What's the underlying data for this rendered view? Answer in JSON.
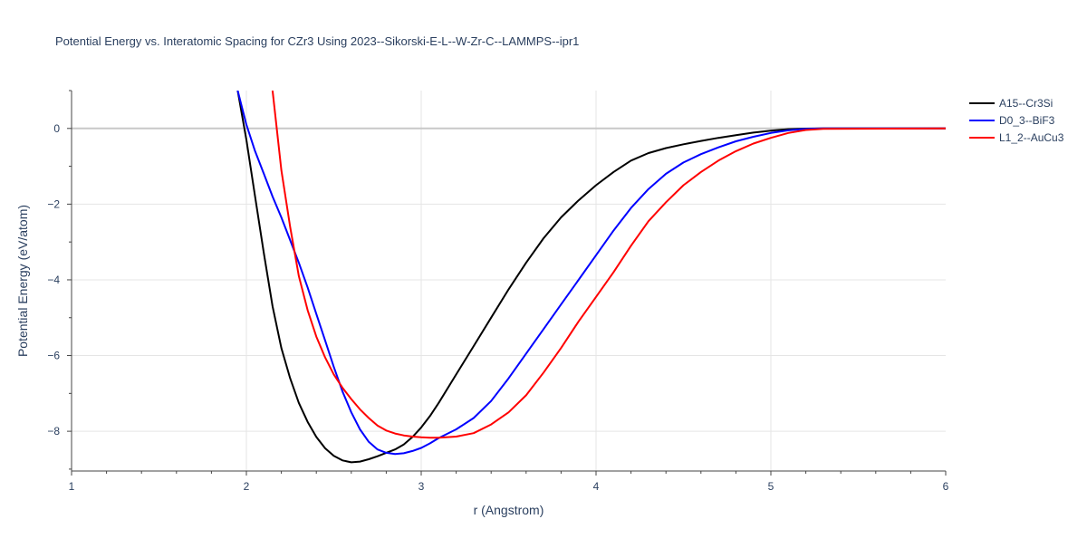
{
  "chart_data": {
    "type": "line",
    "title": "Potential Energy vs. Interatomic Spacing for CZr3 Using 2023--Sikorski-E-L--W-Zr-C--LAMMPS--ipr1",
    "xlabel": "r (Angstrom)",
    "ylabel": "Potential Energy (eV/atom)",
    "xlim": [
      1,
      6
    ],
    "ylim": [
      -9.05,
      1.0
    ],
    "x_ticks": [
      1,
      2,
      3,
      4,
      5,
      6
    ],
    "y_ticks": [
      0,
      -2,
      -4,
      -6,
      -8
    ],
    "x_tick_labels": [
      "1",
      "2",
      "3",
      "4",
      "5",
      "6"
    ],
    "y_tick_labels": [
      "0",
      "−2",
      "−4",
      "−6",
      "−8"
    ],
    "grid": true,
    "legend_position": "top-right",
    "series": [
      {
        "name": "A15--Cr3Si",
        "color": "#000000",
        "x": [
          1.95,
          2.0,
          2.05,
          2.1,
          2.15,
          2.2,
          2.25,
          2.3,
          2.35,
          2.4,
          2.45,
          2.5,
          2.55,
          2.6,
          2.65,
          2.7,
          2.75,
          2.8,
          2.85,
          2.9,
          2.95,
          3.0,
          3.05,
          3.1,
          3.2,
          3.3,
          3.4,
          3.5,
          3.6,
          3.7,
          3.8,
          3.9,
          4.0,
          4.1,
          4.2,
          4.3,
          4.4,
          4.5,
          4.6,
          4.7,
          4.8,
          4.9,
          5.0,
          5.1,
          5.2,
          5.3,
          6.0
        ],
        "y": [
          1.0,
          -0.3,
          -1.8,
          -3.3,
          -4.7,
          -5.8,
          -6.6,
          -7.25,
          -7.75,
          -8.15,
          -8.45,
          -8.65,
          -8.77,
          -8.82,
          -8.8,
          -8.74,
          -8.66,
          -8.57,
          -8.48,
          -8.35,
          -8.15,
          -7.9,
          -7.6,
          -7.25,
          -6.5,
          -5.75,
          -5.0,
          -4.25,
          -3.55,
          -2.9,
          -2.35,
          -1.9,
          -1.5,
          -1.15,
          -0.85,
          -0.65,
          -0.52,
          -0.42,
          -0.33,
          -0.25,
          -0.18,
          -0.11,
          -0.06,
          -0.02,
          -0.005,
          0.0,
          0.0
        ]
      },
      {
        "name": "D0_3--BiF3",
        "color": "#0000ff",
        "x": [
          1.95,
          2.0,
          2.05,
          2.1,
          2.15,
          2.2,
          2.25,
          2.3,
          2.35,
          2.4,
          2.45,
          2.5,
          2.55,
          2.6,
          2.65,
          2.7,
          2.75,
          2.8,
          2.85,
          2.9,
          2.95,
          3.0,
          3.05,
          3.1,
          3.2,
          3.3,
          3.4,
          3.5,
          3.6,
          3.7,
          3.8,
          3.9,
          4.0,
          4.1,
          4.2,
          4.3,
          4.4,
          4.5,
          4.6,
          4.7,
          4.8,
          4.9,
          5.0,
          5.1,
          5.2,
          5.3,
          6.0
        ],
        "y": [
          1.0,
          0.1,
          -0.6,
          -1.2,
          -1.8,
          -2.35,
          -2.95,
          -3.55,
          -4.2,
          -4.9,
          -5.6,
          -6.3,
          -6.95,
          -7.5,
          -7.95,
          -8.28,
          -8.48,
          -8.57,
          -8.6,
          -8.58,
          -8.52,
          -8.44,
          -8.32,
          -8.18,
          -7.95,
          -7.65,
          -7.2,
          -6.6,
          -5.95,
          -5.3,
          -4.65,
          -4.0,
          -3.35,
          -2.7,
          -2.1,
          -1.6,
          -1.2,
          -0.9,
          -0.68,
          -0.5,
          -0.34,
          -0.22,
          -0.12,
          -0.05,
          -0.01,
          0.0,
          0.0
        ]
      },
      {
        "name": "L1_2--AuCu3",
        "color": "#ff0000",
        "x": [
          2.15,
          2.2,
          2.25,
          2.3,
          2.35,
          2.4,
          2.45,
          2.5,
          2.55,
          2.6,
          2.65,
          2.7,
          2.75,
          2.8,
          2.85,
          2.9,
          2.95,
          3.0,
          3.05,
          3.1,
          3.2,
          3.3,
          3.4,
          3.5,
          3.6,
          3.7,
          3.8,
          3.9,
          4.0,
          4.1,
          4.2,
          4.3,
          4.4,
          4.5,
          4.6,
          4.7,
          4.8,
          4.9,
          5.0,
          5.1,
          5.2,
          5.3,
          6.0
        ],
        "y": [
          1.0,
          -1.1,
          -2.6,
          -3.9,
          -4.8,
          -5.5,
          -6.05,
          -6.5,
          -6.85,
          -7.15,
          -7.42,
          -7.65,
          -7.85,
          -7.98,
          -8.06,
          -8.11,
          -8.14,
          -8.16,
          -8.17,
          -8.17,
          -8.14,
          -8.05,
          -7.82,
          -7.5,
          -7.05,
          -6.45,
          -5.8,
          -5.1,
          -4.45,
          -3.8,
          -3.1,
          -2.45,
          -1.95,
          -1.5,
          -1.15,
          -0.85,
          -0.6,
          -0.4,
          -0.25,
          -0.12,
          -0.04,
          -0.01,
          0.0
        ]
      }
    ]
  }
}
